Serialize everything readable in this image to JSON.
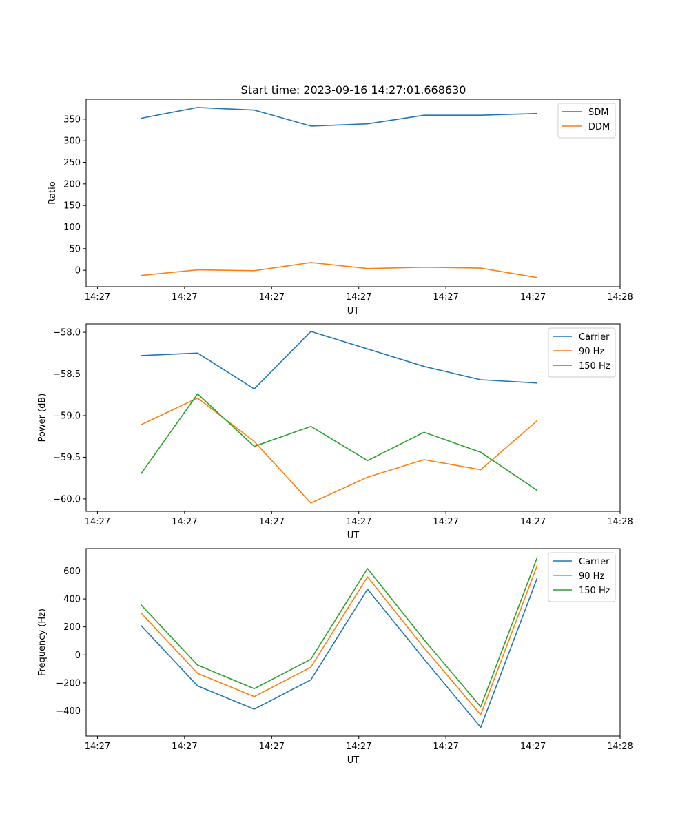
{
  "figure_title": "Start time: 2023-09-16 14:27:01.668630",
  "colors": {
    "blue": "#1f77b4",
    "orange": "#ff7f0e",
    "green": "#2ca02c"
  },
  "chart_data": [
    {
      "type": "line",
      "title": "Start time: 2023-09-16 14:27:01.668630",
      "xlabel": "UT",
      "ylabel": "Ratio",
      "xlim": [
        -0.13,
        6.0
      ],
      "ylim": [
        -38,
        396
      ],
      "x": [
        0.5,
        1.15,
        1.8,
        2.45,
        3.1,
        3.75,
        4.4,
        5.05
      ],
      "xticks": [
        0,
        1,
        2,
        3,
        4,
        5,
        6
      ],
      "xtick_labels": [
        "14:27",
        "14:27",
        "14:27",
        "14:27",
        "14:27",
        "14:27",
        "14:28"
      ],
      "yticks": [
        0,
        50,
        100,
        150,
        200,
        250,
        300,
        350
      ],
      "ytick_labels": [
        "0",
        "50",
        "100",
        "150",
        "200",
        "250",
        "300",
        "350"
      ],
      "legend_position": "top-right",
      "series": [
        {
          "name": "SDM",
          "color": "#1f77b4",
          "values": [
            352,
            377,
            371,
            334,
            339,
            359,
            359,
            363
          ]
        },
        {
          "name": "DDM",
          "color": "#ff7f0e",
          "values": [
            -12,
            1,
            -1,
            18,
            4,
            7,
            5,
            -17
          ]
        }
      ]
    },
    {
      "type": "line",
      "title": "",
      "xlabel": "UT",
      "ylabel": "Power (dB)",
      "xlim": [
        -0.13,
        6.0
      ],
      "ylim": [
        -60.15,
        -57.9
      ],
      "x": [
        0.5,
        1.15,
        1.8,
        2.45,
        3.1,
        3.75,
        4.4,
        5.05
      ],
      "xticks": [
        0,
        1,
        2,
        3,
        4,
        5,
        6
      ],
      "xtick_labels": [
        "14:27",
        "14:27",
        "14:27",
        "14:27",
        "14:27",
        "14:27",
        "14:28"
      ],
      "yticks": [
        -60.0,
        -59.5,
        -59.0,
        -58.5,
        -58.0
      ],
      "ytick_labels": [
        "−60.0",
        "−59.5",
        "−59.0",
        "−58.5",
        "−58.0"
      ],
      "legend_position": "top-right",
      "series": [
        {
          "name": "Carrier",
          "color": "#1f77b4",
          "values": [
            -58.28,
            -58.25,
            -58.68,
            -57.99,
            -58.2,
            -58.41,
            -58.57,
            -58.61
          ]
        },
        {
          "name": "90 Hz",
          "color": "#ff7f0e",
          "values": [
            -59.11,
            -58.79,
            -59.31,
            -60.05,
            -59.74,
            -59.53,
            -59.65,
            -59.06
          ]
        },
        {
          "name": "150 Hz",
          "color": "#2ca02c",
          "values": [
            -59.7,
            -58.74,
            -59.37,
            -59.13,
            -59.54,
            -59.2,
            -59.44,
            -59.9
          ]
        }
      ]
    },
    {
      "type": "line",
      "title": "",
      "xlabel": "UT",
      "ylabel": "Frequency (Hz)",
      "xlim": [
        -0.13,
        6.0
      ],
      "ylim": [
        -580,
        760
      ],
      "x": [
        0.5,
        1.15,
        1.8,
        2.45,
        3.1,
        3.75,
        4.4,
        5.05
      ],
      "xticks": [
        0,
        1,
        2,
        3,
        4,
        5,
        6
      ],
      "xtick_labels": [
        "14:27",
        "14:27",
        "14:27",
        "14:27",
        "14:27",
        "14:27",
        "14:28"
      ],
      "yticks": [
        -400,
        -200,
        0,
        200,
        400,
        600
      ],
      "ytick_labels": [
        "−400",
        "−200",
        "0",
        "200",
        "400",
        "600"
      ],
      "legend_position": "top-right",
      "series": [
        {
          "name": "Carrier",
          "color": "#1f77b4",
          "values": [
            210,
            -222,
            -388,
            -178,
            470,
            -30,
            -518,
            552
          ]
        },
        {
          "name": "90 Hz",
          "color": "#ff7f0e",
          "values": [
            300,
            -132,
            -298,
            -88,
            558,
            50,
            -428,
            642
          ]
        },
        {
          "name": "150 Hz",
          "color": "#2ca02c",
          "values": [
            358,
            -73,
            -241,
            -31,
            617,
            108,
            -371,
            699
          ]
        }
      ]
    }
  ]
}
